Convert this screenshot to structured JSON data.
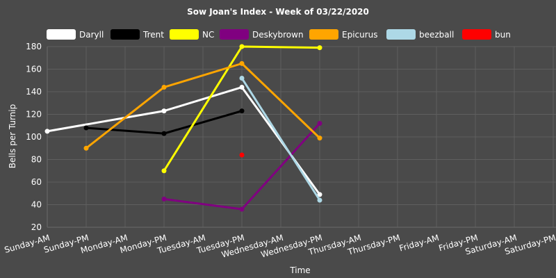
{
  "chart_data": {
    "type": "line",
    "title": "Sow Joan's Index - Week of 03/22/2020",
    "xlabel": "Time",
    "ylabel": "Bells per Turnip",
    "ylim": [
      20,
      180
    ],
    "yticks": [
      20,
      40,
      60,
      80,
      100,
      120,
      140,
      160,
      180
    ],
    "grid": true,
    "legend_position": "top",
    "categories": [
      "Sunday-AM",
      "Sunday-PM",
      "Monday-AM",
      "Monday-PM",
      "Tuesday-AM",
      "Tuesday-PM",
      "Wednesday-AM",
      "Wednesday-PM",
      "Thursday-AM",
      "Thursday-PM",
      "Friday-AM",
      "Friday-PM",
      "Saturday-AM",
      "Saturday-PM"
    ],
    "series": [
      {
        "name": "Daryll",
        "color": "#ffffff",
        "values": [
          105,
          null,
          null,
          123,
          null,
          144,
          null,
          49,
          null,
          null,
          null,
          null,
          null,
          null
        ]
      },
      {
        "name": "Trent",
        "color": "#000000",
        "values": [
          null,
          108,
          null,
          103,
          null,
          123,
          null,
          null,
          null,
          null,
          null,
          null,
          null,
          null
        ]
      },
      {
        "name": "NC",
        "color": "#ffff00",
        "values": [
          null,
          null,
          null,
          70,
          null,
          180,
          null,
          179,
          null,
          null,
          null,
          null,
          null,
          null
        ]
      },
      {
        "name": "Deskybrown",
        "color": "#800080",
        "values": [
          null,
          null,
          null,
          45,
          null,
          36,
          null,
          112,
          null,
          null,
          null,
          null,
          null,
          null
        ]
      },
      {
        "name": "Epicurus",
        "color": "#ffa500",
        "values": [
          null,
          90,
          null,
          144,
          null,
          165,
          null,
          99,
          null,
          null,
          null,
          null,
          null,
          null
        ]
      },
      {
        "name": "beezball",
        "color": "#add8e6",
        "values": [
          null,
          null,
          null,
          null,
          null,
          152,
          null,
          44,
          null,
          null,
          null,
          null,
          null,
          null
        ]
      },
      {
        "name": "bun",
        "color": "#ff0000",
        "values": [
          null,
          null,
          null,
          null,
          null,
          84,
          null,
          null,
          null,
          null,
          null,
          null,
          null,
          null
        ]
      }
    ]
  }
}
